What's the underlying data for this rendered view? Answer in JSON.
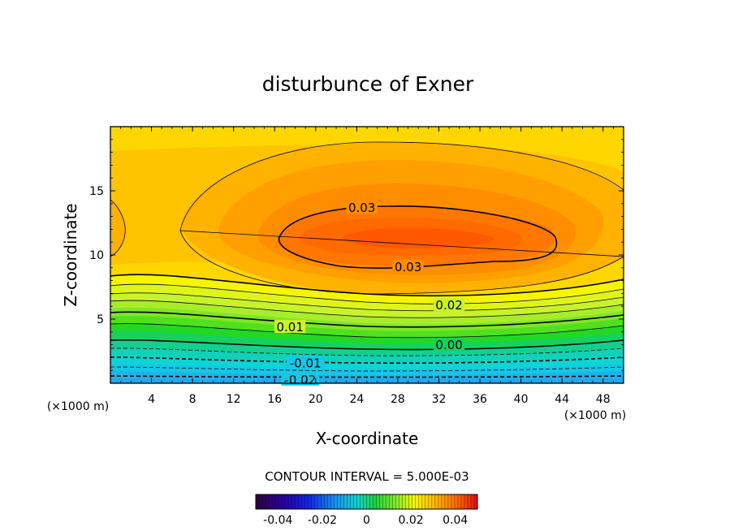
{
  "chart_data": {
    "type": "contour",
    "title": "disturbunce of Exner",
    "xlabel": "X-coordinate",
    "ylabel": "Z-coordinate",
    "x_unit_left": "(×1000 m)",
    "x_unit_right": "(×1000 m)",
    "xlim": [
      0,
      50
    ],
    "ylim": [
      0,
      20
    ],
    "x_ticks": [
      4,
      8,
      12,
      16,
      20,
      24,
      28,
      32,
      36,
      40,
      44,
      48
    ],
    "y_ticks": [
      5,
      10,
      15
    ],
    "contour_interval_text": "CONTOUR INTERVAL = 5.000E-03",
    "contour_labels": [
      {
        "text": "0.03",
        "x": 24.5,
        "z": 13.6
      },
      {
        "text": "0.03",
        "x": 29.0,
        "z": 9.0
      },
      {
        "text": "0.02",
        "x": 33.0,
        "z": 6.0
      },
      {
        "text": "0.01",
        "x": 17.5,
        "z": 4.3
      },
      {
        "text": "0.00",
        "x": 33.0,
        "z": 2.9
      },
      {
        "text": "-0.01",
        "x": 19.0,
        "z": 1.5
      },
      {
        "text": "-0.02",
        "x": 18.5,
        "z": 0.2
      }
    ],
    "field_description": "max ~0.035 near x=26-30, z=11; decreases to ~-0.025 at z=0",
    "colorbar": {
      "ticks": [
        "-0.04",
        "-0.02",
        "0",
        "0.02",
        "0.04"
      ],
      "tick_values": [
        -0.04,
        -0.02,
        0,
        0.02,
        0.04
      ],
      "range": [
        -0.05,
        0.05
      ]
    }
  }
}
